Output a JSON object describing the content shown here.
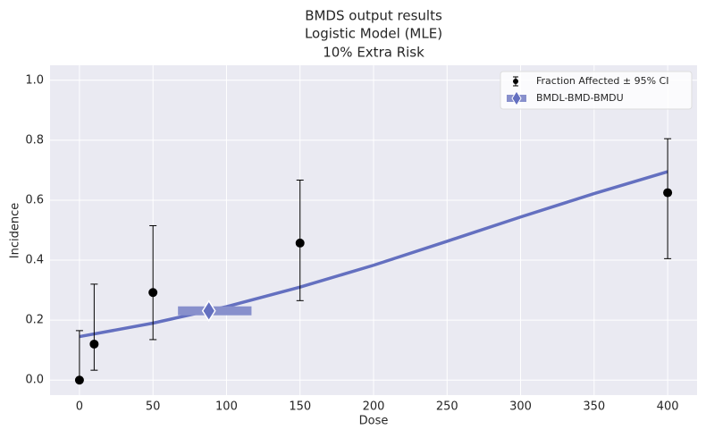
{
  "chart_data": {
    "type": "dose-response",
    "title": [
      "BMDS output results",
      "Logistic Model (MLE)",
      "10% Extra Risk"
    ],
    "x_label": "Dose",
    "y_label": "Incidence",
    "xlim": [
      -20,
      420
    ],
    "ylim": [
      -0.05,
      1.05
    ],
    "xticks": [
      0,
      50,
      100,
      150,
      200,
      250,
      300,
      350,
      400
    ],
    "yticks": [
      {
        "value": 0,
        "label": "0.0"
      },
      0.2,
      0.4,
      0.6,
      0.8,
      {
        "value": 1,
        "label": "1.0"
      }
    ],
    "grid": true,
    "legend": "upper right",
    "observations": {
      "name": "Fraction Affected ± 95% CI",
      "color": "#000000",
      "x": [
        0,
        10,
        50,
        150,
        400
      ],
      "values": [
        0,
        0.12,
        0.292,
        0.457,
        0.625
      ],
      "lower": [
        0,
        0.033,
        0.135,
        0.265,
        0.405
      ],
      "upper": [
        0.165,
        0.32,
        0.515,
        0.667,
        0.805
      ]
    },
    "model": {
      "color": "#6470c0",
      "x": [
        0,
        50,
        100,
        150,
        200,
        250,
        300,
        350,
        400
      ],
      "values": [
        0.145,
        0.19,
        0.245,
        0.31,
        0.383,
        0.463,
        0.544,
        0.622,
        0.695
      ]
    },
    "bmd": {
      "name": "BMDL-BMD-BMDU",
      "color": "#8890cc",
      "marker_color": "#6470c0",
      "bmdl": 67,
      "bmd": 88,
      "bmdu": 117,
      "value": 0.231
    }
  }
}
